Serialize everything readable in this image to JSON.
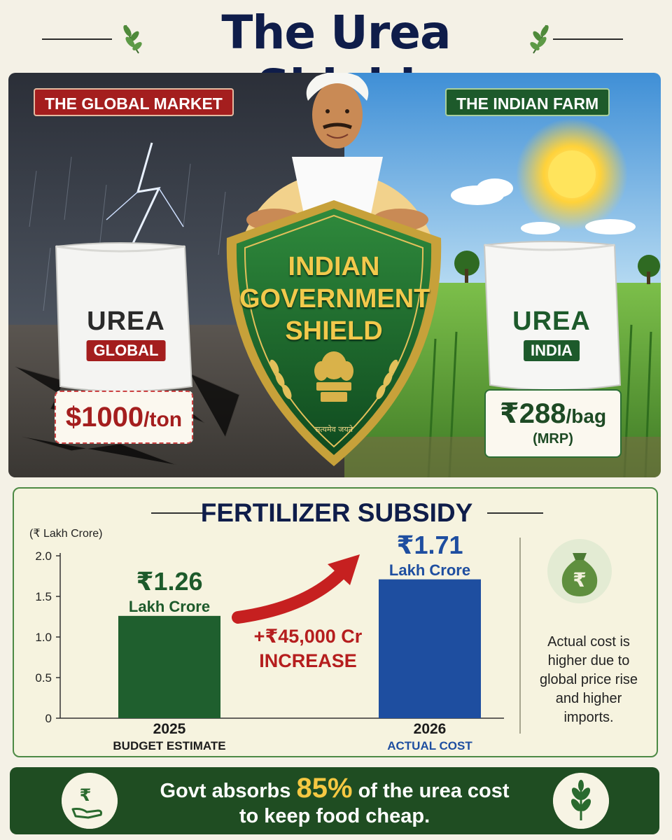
{
  "header": {
    "title": "The Urea Shield"
  },
  "hero": {
    "global_tag": "THE GLOBAL MARKET",
    "indian_tag": "THE INDIAN FARM",
    "global_sack": {
      "word": "UREA",
      "chip": "GLOBAL"
    },
    "india_sack": {
      "word": "UREA",
      "chip": "INDIA"
    },
    "global_price": {
      "value": "$1000",
      "unit": "/ton"
    },
    "india_price": {
      "value": "₹288",
      "unit": "/bag",
      "note": "(MRP)"
    },
    "shield": {
      "line1": "INDIAN",
      "line2": "GOVERNMENT",
      "line3": "SHIELD",
      "motto": "सत्यमेव जयते"
    }
  },
  "subsidy": {
    "title": "FERTILIZER SUBSIDY",
    "unit_label": "(₹ Lakh Crore)",
    "increase": {
      "amount": "+₹45,000 Cr",
      "word": "INCREASE"
    },
    "note": "Actual cost is higher due to global price rise and higher imports.",
    "bars": [
      {
        "value_text": "₹1.26",
        "unit_text": "Lakh Crore",
        "year": "2025",
        "label": "BUDGET ESTIMATE"
      },
      {
        "value_text": "₹1.71",
        "unit_text": "Lakh Crore",
        "year": "2026",
        "label": "ACTUAL COST"
      }
    ]
  },
  "chart_data": {
    "type": "bar",
    "categories": [
      "2025",
      "2026"
    ],
    "values": [
      1.26,
      1.71
    ],
    "title": "FERTILIZER SUBSIDY",
    "xlabel": "",
    "ylabel": "(₹ Lakh Crore)",
    "ylim": [
      0,
      2.0
    ],
    "yticks": [
      "2.0",
      "1.5",
      "1.0",
      "0.5",
      "0"
    ],
    "colors": [
      "#1f5f2e",
      "#1e4ea0"
    ],
    "grid": false,
    "legend": "none"
  },
  "footer": {
    "text_before": "Govt absorbs",
    "highlight": "85%",
    "text_after": "of the urea cost",
    "line2": "to keep food cheap.",
    "left_icon": "rupee-hand-icon",
    "right_icon": "plant-icon"
  },
  "colors": {
    "accent_green": "#1f4d22",
    "accent_red": "#a41e1e",
    "accent_blue": "#1e4ea0",
    "highlight": "#f5c842"
  }
}
